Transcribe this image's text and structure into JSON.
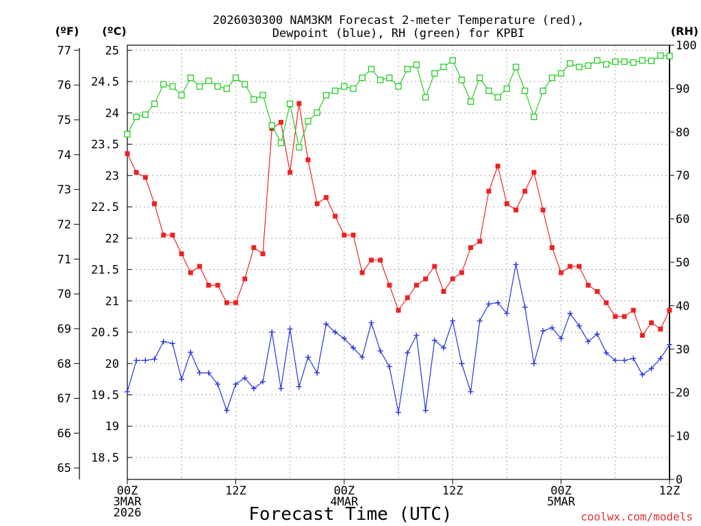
{
  "colors": {
    "temp": "#ee2222",
    "dew": "#2233dd",
    "rh": "#22cc22",
    "grid": "#a0a0a0",
    "watermark": "#e03030"
  },
  "chart_data": {
    "type": "line",
    "title_lines": [
      "2026030300 NAM3KM Forecast 2-meter Temperature (red),",
      "Dewpoint (blue), RH (green) for KPBI"
    ],
    "left_unit_f": "(ºF)",
    "left_unit_c": "(ºC)",
    "right_unit": "(RH)",
    "xlabel": "Forecast Time (UTC)",
    "watermark": "coolwx.com/models",
    "x_hours_range": [
      0,
      60
    ],
    "x_ticks": [
      {
        "hour": 0,
        "lines": [
          "00Z",
          "3MAR",
          "2026"
        ]
      },
      {
        "hour": 12,
        "lines": [
          "12Z"
        ]
      },
      {
        "hour": 24,
        "lines": [
          "00Z",
          "4MAR"
        ]
      },
      {
        "hour": 36,
        "lines": [
          "12Z"
        ]
      },
      {
        "hour": 48,
        "lines": [
          "00Z",
          "5MAR"
        ]
      },
      {
        "hour": 60,
        "lines": [
          "12Z"
        ]
      }
    ],
    "c_ticks": [
      "18.5",
      "19",
      "19.5",
      "20",
      "20.5",
      "21",
      "21.5",
      "22",
      "22.5",
      "23",
      "23.5",
      "24",
      "24.5",
      "25"
    ],
    "f_ticks": [
      "65",
      "66",
      "67",
      "68",
      "69",
      "70",
      "71",
      "72",
      "73",
      "74",
      "75",
      "76",
      "77"
    ],
    "rh_ticks": [
      "0",
      "10",
      "20",
      "30",
      "40",
      "50",
      "60",
      "70",
      "80",
      "90",
      "100"
    ],
    "temp_c_range": [
      18.15,
      25.08
    ],
    "rh_range": [
      0,
      100
    ],
    "series": [
      {
        "name": "Temperature",
        "unit": "C",
        "marker": "filled-square",
        "values": [
          23.35,
          23.05,
          22.97,
          22.55,
          22.05,
          22.05,
          21.75,
          21.45,
          21.55,
          21.25,
          21.25,
          20.97,
          20.97,
          21.35,
          21.85,
          21.75,
          23.75,
          23.85,
          23.05,
          24.15,
          23.25,
          22.55,
          22.65,
          22.35,
          22.05,
          22.05,
          21.45,
          21.65,
          21.65,
          21.25,
          20.85,
          21.05,
          21.25,
          21.35,
          21.55,
          21.15,
          21.35,
          21.45,
          21.85,
          21.95,
          22.75,
          23.15,
          22.55,
          22.45,
          22.75,
          23.05,
          22.45,
          21.85,
          21.45,
          21.55,
          21.55,
          21.25,
          21.15,
          20.97,
          20.75,
          20.75,
          20.85,
          20.45,
          20.65,
          20.55,
          20.85
        ]
      },
      {
        "name": "Dewpoint",
        "unit": "C",
        "marker": "plus",
        "values": [
          19.55,
          20.05,
          20.05,
          20.07,
          20.35,
          20.32,
          19.75,
          20.18,
          19.85,
          19.85,
          19.67,
          19.25,
          19.67,
          19.77,
          19.6,
          19.71,
          20.5,
          19.6,
          20.55,
          19.63,
          20.1,
          19.85,
          20.63,
          20.5,
          20.4,
          20.25,
          20.1,
          20.65,
          20.2,
          19.95,
          19.22,
          20.17,
          20.45,
          19.25,
          20.37,
          20.25,
          20.68,
          20.0,
          19.55,
          20.68,
          20.95,
          20.97,
          20.8,
          21.58,
          20.9,
          20.0,
          20.52,
          20.57,
          20.4,
          20.8,
          20.6,
          20.35,
          20.47,
          20.17,
          20.05,
          20.05,
          20.08,
          19.82,
          19.92,
          20.08,
          20.3
        ]
      },
      {
        "name": "RH",
        "unit": "%",
        "marker": "open-square",
        "values": [
          79.5,
          83.5,
          84,
          86.5,
          91,
          90.5,
          88.5,
          92.5,
          90.5,
          91.8,
          90.5,
          90,
          92.5,
          91,
          87.5,
          88.5,
          81.5,
          77.5,
          86.5,
          76.5,
          82.5,
          84.5,
          88.5,
          89.5,
          90.5,
          90,
          92.5,
          94.5,
          92,
          92.5,
          90.5,
          94.5,
          95.5,
          88,
          93.5,
          95,
          96.5,
          92,
          87,
          92.5,
          89.5,
          88,
          90,
          95,
          89.5,
          83.5,
          89.5,
          92.5,
          93.5,
          95.8,
          95,
          95.3,
          96.5,
          95.6,
          96.2,
          96.2,
          96,
          96.5,
          96.4,
          97.6,
          97.5
        ]
      }
    ]
  }
}
